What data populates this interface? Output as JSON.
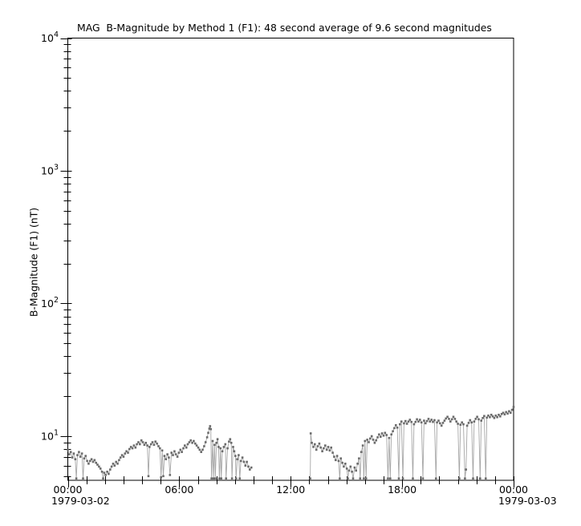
{
  "page": {
    "background": "#ffffff"
  },
  "chart_data": {
    "type": "line",
    "title": "MAG  B-Magnitude by Method 1 (F1): 48 second average of 9.6 second magnitudes",
    "ylabel": "B-Magnitude (F1) (nT)",
    "legend": "none",
    "grid": "off",
    "colors": {
      "axis": "#000000",
      "marker": "#6b6b6b",
      "line": "#a6a6a6",
      "background": "#ffffff"
    },
    "x_axis": {
      "unit": "time of day (hours since 1979-03-02 00:00)",
      "range_hours": [
        0,
        24
      ],
      "minor_tick_interval_hours": 1,
      "major_ticks": [
        {
          "hour": 0,
          "label": "00:00"
        },
        {
          "hour": 6,
          "label": "06:00"
        },
        {
          "hour": 12,
          "label": "12:00"
        },
        {
          "hour": 18,
          "label": "18:00"
        },
        {
          "hour": 24,
          "label": "00:00"
        }
      ],
      "date_left": "1979-03-02",
      "date_right": "1979-03-03"
    },
    "y_axis": {
      "scale": "log",
      "range": [
        4.65,
        10000
      ],
      "major_ticks": [
        {
          "value": 10,
          "label_base": "10",
          "label_exponent": "1"
        },
        {
          "value": 100,
          "label_base": "10",
          "label_exponent": "2"
        },
        {
          "value": 1000,
          "label_base": "10",
          "label_exponent": "3"
        },
        {
          "value": 10000,
          "label_base": "10",
          "label_exponent": "4"
        }
      ],
      "minor_ticks_per_decade": [
        2,
        3,
        4,
        5,
        6,
        7,
        8,
        9
      ]
    },
    "series": [
      {
        "name": "B-Magnitude (F1) 48-second average",
        "marker": "square",
        "marker_color": "#6b6b6b",
        "line_color": "#a6a6a6",
        "points": [
          [
            0.0,
            7.9
          ],
          [
            0.08,
            7.3
          ],
          [
            0.16,
            7.6
          ],
          [
            0.24,
            6.9
          ],
          [
            0.32,
            7.4
          ],
          [
            0.4,
            6.7
          ],
          [
            0.46,
            4.8
          ],
          [
            0.52,
            7.2
          ],
          [
            0.6,
            7.6
          ],
          [
            0.68,
            7.0
          ],
          [
            0.76,
            7.4
          ],
          [
            0.82,
            4.8
          ],
          [
            0.88,
            6.8
          ],
          [
            0.96,
            7.1
          ],
          [
            1.04,
            6.5
          ],
          [
            1.12,
            6.2
          ],
          [
            1.2,
            6.5
          ],
          [
            1.28,
            6.7
          ],
          [
            1.36,
            6.4
          ],
          [
            1.44,
            6.6
          ],
          [
            1.52,
            6.3
          ],
          [
            1.6,
            6.1
          ],
          [
            1.68,
            5.9
          ],
          [
            1.76,
            5.7
          ],
          [
            1.84,
            5.4
          ],
          [
            1.9,
            4.8
          ],
          [
            1.96,
            5.3
          ],
          [
            2.04,
            5.1
          ],
          [
            2.12,
            5.4
          ],
          [
            2.2,
            5.2
          ],
          [
            2.28,
            5.6
          ],
          [
            2.36,
            5.9
          ],
          [
            2.44,
            6.2
          ],
          [
            2.52,
            6.0
          ],
          [
            2.6,
            6.4
          ],
          [
            2.68,
            6.2
          ],
          [
            2.76,
            6.6
          ],
          [
            2.84,
            6.9
          ],
          [
            2.92,
            7.2
          ],
          [
            3.0,
            7.0
          ],
          [
            3.08,
            7.4
          ],
          [
            3.16,
            7.7
          ],
          [
            3.24,
            7.5
          ],
          [
            3.32,
            8.0
          ],
          [
            3.4,
            8.3
          ],
          [
            3.48,
            8.1
          ],
          [
            3.56,
            8.5
          ],
          [
            3.64,
            8.2
          ],
          [
            3.72,
            8.7
          ],
          [
            3.8,
            9.0
          ],
          [
            3.88,
            8.7
          ],
          [
            3.96,
            9.3
          ],
          [
            4.04,
            9.0
          ],
          [
            4.12,
            8.6
          ],
          [
            4.2,
            8.9
          ],
          [
            4.28,
            8.5
          ],
          [
            4.34,
            5.0
          ],
          [
            4.4,
            8.3
          ],
          [
            4.48,
            8.7
          ],
          [
            4.56,
            9.0
          ],
          [
            4.64,
            8.6
          ],
          [
            4.72,
            9.1
          ],
          [
            4.8,
            8.8
          ],
          [
            4.88,
            8.4
          ],
          [
            4.96,
            8.1
          ],
          [
            5.02,
            4.9
          ],
          [
            5.08,
            7.8
          ],
          [
            5.14,
            5.0
          ],
          [
            5.2,
            7.1
          ],
          [
            5.28,
            6.7
          ],
          [
            5.36,
            7.3
          ],
          [
            5.44,
            6.9
          ],
          [
            5.5,
            5.1
          ],
          [
            5.58,
            7.5
          ],
          [
            5.66,
            7.2
          ],
          [
            5.74,
            7.7
          ],
          [
            5.82,
            7.3
          ],
          [
            5.9,
            7.0
          ],
          [
            5.98,
            7.5
          ],
          [
            6.06,
            7.9
          ],
          [
            6.14,
            7.6
          ],
          [
            6.22,
            8.1
          ],
          [
            6.3,
            8.5
          ],
          [
            6.38,
            8.2
          ],
          [
            6.46,
            8.7
          ],
          [
            6.54,
            9.0
          ],
          [
            6.62,
            9.3
          ],
          [
            6.7,
            8.9
          ],
          [
            6.78,
            9.2
          ],
          [
            6.86,
            8.8
          ],
          [
            6.94,
            8.5
          ],
          [
            7.02,
            8.2
          ],
          [
            7.1,
            7.9
          ],
          [
            7.18,
            7.6
          ],
          [
            7.26,
            7.9
          ],
          [
            7.34,
            8.4
          ],
          [
            7.42,
            9.0
          ],
          [
            7.5,
            9.8
          ],
          [
            7.56,
            10.6
          ],
          [
            7.62,
            11.4
          ],
          [
            7.66,
            11.9
          ],
          [
            7.7,
            11.3
          ],
          [
            7.74,
            4.8
          ],
          [
            7.8,
            9.2
          ],
          [
            7.84,
            4.8
          ],
          [
            7.9,
            8.6
          ],
          [
            7.94,
            4.8
          ],
          [
            8.0,
            8.9
          ],
          [
            8.06,
            9.5
          ],
          [
            8.12,
            8.3
          ],
          [
            8.16,
            4.8
          ],
          [
            8.22,
            8.1
          ],
          [
            8.26,
            4.8
          ],
          [
            8.32,
            7.7
          ],
          [
            8.4,
            8.3
          ],
          [
            8.48,
            8.7
          ],
          [
            8.52,
            4.8
          ],
          [
            8.6,
            8.1
          ],
          [
            8.68,
            9.1
          ],
          [
            8.74,
            9.5
          ],
          [
            8.8,
            8.9
          ],
          [
            8.84,
            4.8
          ],
          [
            8.9,
            8.3
          ],
          [
            8.96,
            7.7
          ],
          [
            9.02,
            7.1
          ],
          [
            9.06,
            4.8
          ],
          [
            9.12,
            6.7
          ],
          [
            9.2,
            7.2
          ],
          [
            9.26,
            4.8
          ],
          [
            9.32,
            6.5
          ],
          [
            9.4,
            6.9
          ],
          [
            9.48,
            6.4
          ],
          [
            9.56,
            6.0
          ],
          [
            9.64,
            6.4
          ],
          [
            9.72,
            5.9
          ],
          [
            9.8,
            5.6
          ],
          [
            9.88,
            5.8
          ],
          null,
          [
            13.05,
            4.8
          ],
          [
            13.08,
            10.5
          ],
          [
            13.14,
            8.9
          ],
          [
            13.22,
            8.3
          ],
          [
            13.3,
            8.7
          ],
          [
            13.38,
            7.9
          ],
          [
            13.46,
            8.4
          ],
          [
            13.54,
            8.8
          ],
          [
            13.62,
            8.2
          ],
          [
            13.7,
            7.7
          ],
          [
            13.78,
            8.1
          ],
          [
            13.86,
            8.5
          ],
          [
            13.94,
            7.9
          ],
          [
            14.02,
            8.3
          ],
          [
            14.1,
            7.8
          ],
          [
            14.18,
            8.2
          ],
          [
            14.26,
            7.5
          ],
          [
            14.34,
            7.0
          ],
          [
            14.42,
            6.6
          ],
          [
            14.5,
            7.1
          ],
          [
            14.58,
            6.5
          ],
          [
            14.64,
            4.8
          ],
          [
            14.7,
            6.8
          ],
          [
            14.78,
            6.3
          ],
          [
            14.86,
            5.9
          ],
          [
            14.94,
            6.2
          ],
          [
            15.02,
            5.7
          ],
          [
            15.08,
            4.8
          ],
          [
            15.14,
            5.5
          ],
          [
            15.22,
            5.9
          ],
          [
            15.3,
            5.4
          ],
          [
            15.36,
            4.8
          ],
          [
            15.44,
            5.8
          ],
          [
            15.52,
            5.5
          ],
          [
            15.6,
            6.2
          ],
          [
            15.68,
            6.8
          ],
          [
            15.74,
            4.8
          ],
          [
            15.8,
            7.6
          ],
          [
            15.88,
            8.5
          ],
          [
            15.94,
            4.8
          ],
          [
            16.0,
            9.2
          ],
          [
            16.06,
            4.8
          ],
          [
            16.12,
            9.4
          ],
          [
            16.2,
            9.0
          ],
          [
            16.28,
            9.6
          ],
          [
            16.36,
            10.0
          ],
          [
            16.44,
            9.4
          ],
          [
            16.52,
            8.9
          ],
          [
            16.6,
            9.3
          ],
          [
            16.68,
            9.8
          ],
          [
            16.76,
            10.3
          ],
          [
            16.84,
            9.9
          ],
          [
            16.92,
            10.5
          ],
          [
            17.0,
            10.1
          ],
          [
            17.08,
            10.6
          ],
          [
            17.16,
            10.2
          ],
          [
            17.24,
            4.8
          ],
          [
            17.3,
            9.7
          ],
          [
            17.36,
            4.8
          ],
          [
            17.42,
            10.3
          ],
          [
            17.5,
            10.9
          ],
          [
            17.58,
            11.5
          ],
          [
            17.66,
            12.1
          ],
          [
            17.74,
            11.6
          ],
          [
            17.82,
            4.8
          ],
          [
            17.88,
            12.3
          ],
          [
            17.96,
            12.9
          ],
          [
            18.04,
            4.8
          ],
          [
            18.1,
            12.5
          ],
          [
            18.18,
            13.0
          ],
          [
            18.26,
            12.4
          ],
          [
            18.34,
            12.9
          ],
          [
            18.42,
            13.3
          ],
          [
            18.5,
            12.8
          ],
          [
            18.58,
            4.8
          ],
          [
            18.64,
            12.3
          ],
          [
            18.72,
            12.8
          ],
          [
            18.8,
            13.4
          ],
          [
            18.88,
            12.9
          ],
          [
            18.96,
            13.3
          ],
          [
            19.04,
            12.7
          ],
          [
            19.12,
            4.8
          ],
          [
            19.18,
            13.1
          ],
          [
            19.26,
            12.5
          ],
          [
            19.34,
            13.0
          ],
          [
            19.42,
            13.5
          ],
          [
            19.5,
            12.9
          ],
          [
            19.58,
            13.3
          ],
          [
            19.66,
            12.8
          ],
          [
            19.74,
            13.2
          ],
          [
            19.82,
            4.8
          ],
          [
            19.88,
            12.7
          ],
          [
            19.96,
            13.1
          ],
          [
            20.04,
            12.5
          ],
          [
            20.12,
            12.0
          ],
          [
            20.2,
            12.6
          ],
          [
            20.28,
            13.1
          ],
          [
            20.36,
            13.6
          ],
          [
            20.44,
            14.0
          ],
          [
            20.52,
            13.5
          ],
          [
            20.6,
            12.9
          ],
          [
            20.68,
            13.4
          ],
          [
            20.76,
            14.0
          ],
          [
            20.84,
            13.5
          ],
          [
            20.92,
            12.9
          ],
          [
            21.0,
            12.4
          ],
          [
            21.08,
            4.8
          ],
          [
            21.14,
            12.2
          ],
          [
            21.22,
            12.7
          ],
          [
            21.3,
            12.3
          ],
          [
            21.38,
            4.8
          ],
          [
            21.44,
            5.6
          ],
          [
            21.5,
            12.0
          ],
          [
            21.58,
            12.6
          ],
          [
            21.66,
            13.2
          ],
          [
            21.74,
            12.7
          ],
          [
            21.82,
            4.8
          ],
          [
            21.88,
            12.9
          ],
          [
            21.96,
            13.5
          ],
          [
            22.04,
            14.0
          ],
          [
            22.12,
            13.4
          ],
          [
            22.2,
            4.8
          ],
          [
            22.26,
            13.1
          ],
          [
            22.34,
            13.7
          ],
          [
            22.42,
            14.2
          ],
          [
            22.5,
            4.8
          ],
          [
            22.56,
            13.8
          ],
          [
            22.64,
            14.3
          ],
          [
            22.72,
            13.9
          ],
          [
            22.8,
            14.5
          ],
          [
            22.88,
            14.1
          ],
          [
            22.96,
            13.7
          ],
          [
            23.04,
            14.3
          ],
          [
            23.12,
            13.9
          ],
          [
            23.2,
            14.5
          ],
          [
            23.28,
            14.1
          ],
          [
            23.36,
            14.7
          ],
          [
            23.44,
            15.0
          ],
          [
            23.52,
            14.6
          ],
          [
            23.6,
            15.2
          ],
          [
            23.68,
            14.8
          ],
          [
            23.76,
            15.4
          ],
          [
            23.84,
            15.0
          ],
          [
            23.92,
            15.8
          ],
          [
            24.0,
            16.6
          ]
        ]
      }
    ]
  }
}
